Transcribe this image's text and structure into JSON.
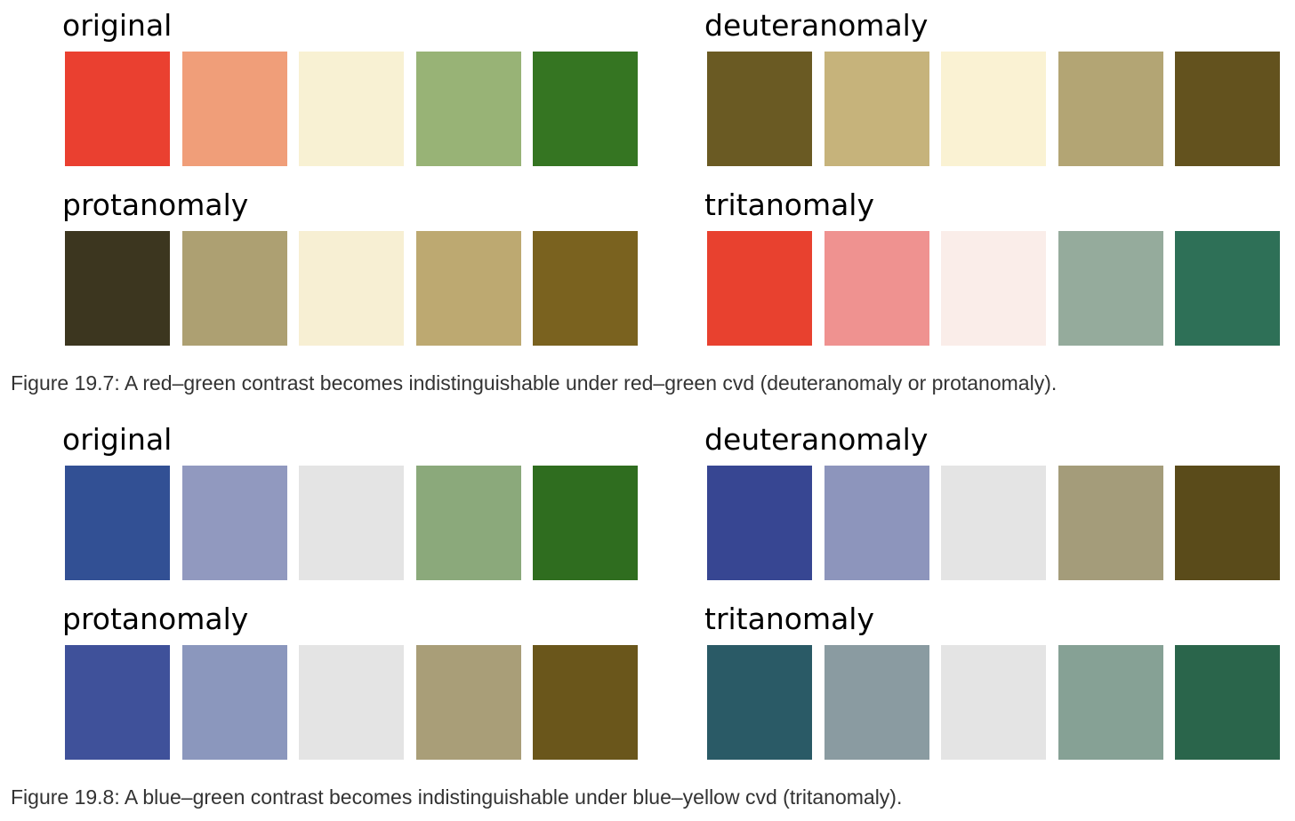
{
  "figures": [
    {
      "panels": [
        {
          "label": "original",
          "colors": [
            "#EA4030",
            "#F09E79",
            "#F8F1D3",
            "#98B376",
            "#357522"
          ]
        },
        {
          "label": "deuteranomaly",
          "colors": [
            "#6A5A23",
            "#C6B37B",
            "#FAF2D3",
            "#B3A574",
            "#63521E"
          ]
        },
        {
          "label": "protanomaly",
          "colors": [
            "#3C361F",
            "#ADA072",
            "#F7EFD3",
            "#BDA971",
            "#7A621F"
          ]
        },
        {
          "label": "tritanomaly",
          "colors": [
            "#E8412F",
            "#EF9290",
            "#FAEDE9",
            "#95AB9C",
            "#2E7057"
          ]
        }
      ],
      "caption": "Figure 19.7: A red–green contrast becomes indistinguishable under red–green cvd (deuteranomaly or protanomaly)."
    },
    {
      "panels": [
        {
          "label": "original",
          "colors": [
            "#325094",
            "#9199BF",
            "#E4E4E4",
            "#8BA97B",
            "#2F6D1F"
          ]
        },
        {
          "label": "deuteranomaly",
          "colors": [
            "#374692",
            "#8D95BC",
            "#E4E4E4",
            "#A49C7A",
            "#5A4B1A"
          ]
        },
        {
          "label": "protanomaly",
          "colors": [
            "#3F519A",
            "#8B97BD",
            "#E4E4E4",
            "#A99E78",
            "#6A561B"
          ]
        },
        {
          "label": "tritanomaly",
          "colors": [
            "#2A5A66",
            "#8A9BA1",
            "#E4E4E4",
            "#86A195",
            "#2A654B"
          ]
        }
      ],
      "caption": "Figure 19.8: A blue–green contrast becomes indistinguishable under blue–yellow cvd (tritanomaly)."
    }
  ]
}
